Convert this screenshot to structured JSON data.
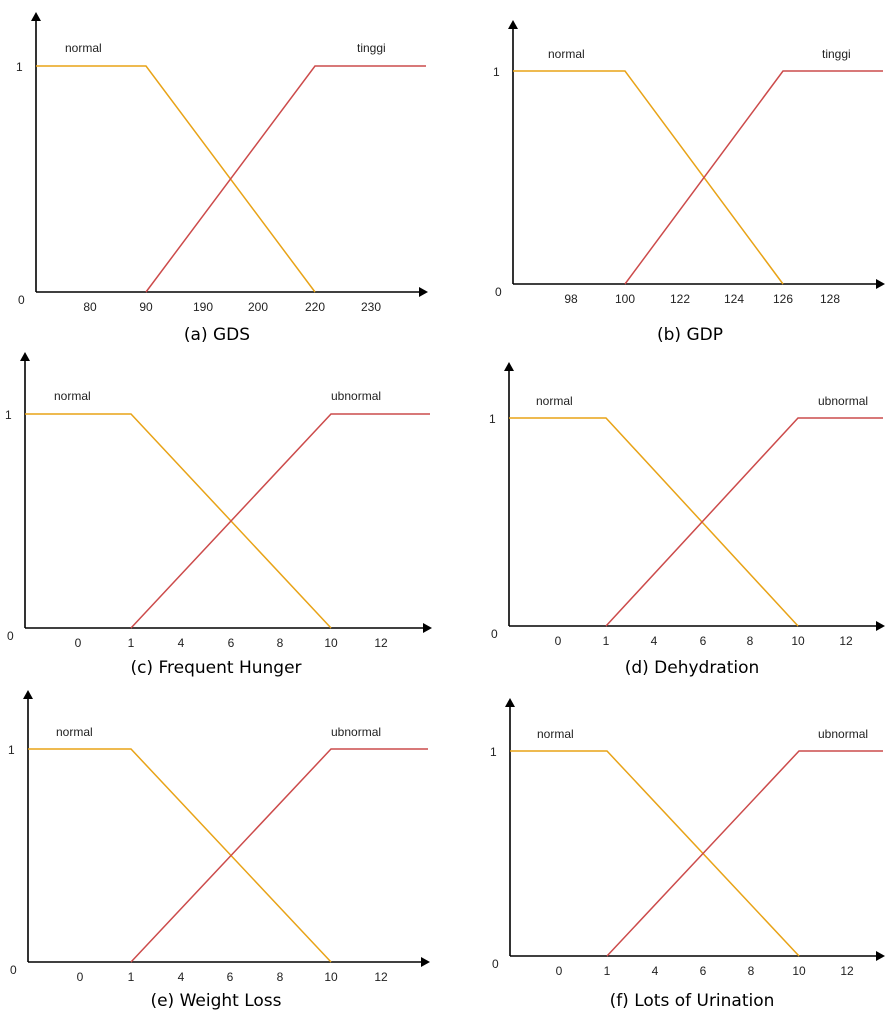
{
  "chart_data": [
    {
      "type": "line",
      "caption": "(a) GDS",
      "y_ticks": [
        "0",
        "1"
      ],
      "x_ticks": [
        "80",
        "90",
        "190",
        "200",
        "220",
        "230"
      ],
      "series": [
        {
          "name": "normal",
          "color": "#e8a317",
          "x_categories": [
            "0",
            "90",
            "220"
          ],
          "y": [
            1,
            1,
            0
          ]
        },
        {
          "name": "tinggi",
          "color": "#cc4b4b",
          "x_categories": [
            "90",
            "220",
            "230"
          ],
          "y": [
            0,
            1,
            1
          ]
        }
      ]
    },
    {
      "type": "line",
      "caption": "(b) GDP",
      "y_ticks": [
        "0",
        "1"
      ],
      "x_ticks": [
        "98",
        "100",
        "122",
        "124",
        "126",
        "128"
      ],
      "series": [
        {
          "name": "normal",
          "color": "#e8a317",
          "x_categories": [
            "0",
            "100",
            "126"
          ],
          "y": [
            1,
            1,
            0
          ]
        },
        {
          "name": "tinggi",
          "color": "#cc4b4b",
          "x_categories": [
            "100",
            "126",
            "128"
          ],
          "y": [
            0,
            1,
            1
          ]
        }
      ]
    },
    {
      "type": "line",
      "caption": "(c) Frequent Hunger",
      "y_ticks": [
        "0",
        "1"
      ],
      "x_ticks": [
        "0",
        "1",
        "4",
        "6",
        "8",
        "10",
        "12"
      ],
      "series": [
        {
          "name": "normal",
          "color": "#e8a317",
          "x": [
            0,
            1,
            10
          ],
          "y": [
            1,
            1,
            0
          ]
        },
        {
          "name": "ubnormal",
          "color": "#cc4b4b",
          "x": [
            1,
            10,
            12
          ],
          "y": [
            0,
            1,
            1
          ]
        }
      ]
    },
    {
      "type": "line",
      "caption": "(d) Dehydration",
      "y_ticks": [
        "0",
        "1"
      ],
      "x_ticks": [
        "0",
        "1",
        "4",
        "6",
        "8",
        "10",
        "12"
      ],
      "series": [
        {
          "name": "normal",
          "color": "#e8a317",
          "x": [
            0,
            1,
            10
          ],
          "y": [
            1,
            1,
            0
          ]
        },
        {
          "name": "ubnormal",
          "color": "#cc4b4b",
          "x": [
            1,
            10,
            12
          ],
          "y": [
            0,
            1,
            1
          ]
        }
      ]
    },
    {
      "type": "line",
      "caption": "(e) Weight Loss",
      "y_ticks": [
        "0",
        "1"
      ],
      "x_ticks": [
        "0",
        "1",
        "4",
        "6",
        "8",
        "10",
        "12"
      ],
      "series": [
        {
          "name": "normal",
          "color": "#e8a317",
          "x": [
            0,
            1,
            10
          ],
          "y": [
            1,
            1,
            0
          ]
        },
        {
          "name": "ubnormal",
          "color": "#cc4b4b",
          "x": [
            1,
            10,
            12
          ],
          "y": [
            0,
            1,
            1
          ]
        }
      ]
    },
    {
      "type": "line",
      "caption": "(f) Lots of Urination",
      "y_ticks": [
        "0",
        "1"
      ],
      "x_ticks": [
        "0",
        "1",
        "4",
        "6",
        "8",
        "10",
        "12"
      ],
      "series": [
        {
          "name": "normal",
          "color": "#e8a317",
          "x": [
            0,
            1,
            10
          ],
          "y": [
            1,
            1,
            0
          ]
        },
        {
          "name": "ubnormal",
          "color": "#cc4b4b",
          "x": [
            1,
            10,
            12
          ],
          "y": [
            0,
            1,
            1
          ]
        }
      ]
    }
  ]
}
